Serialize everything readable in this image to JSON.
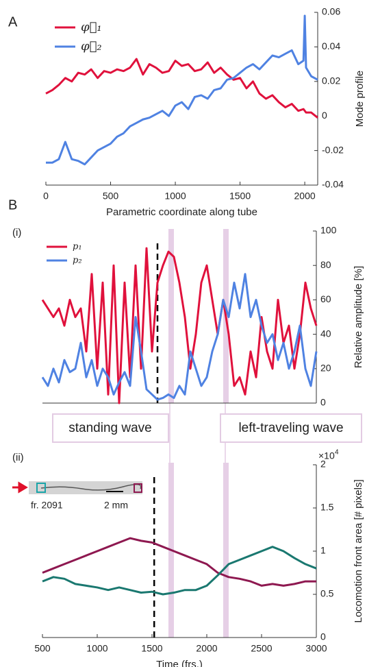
{
  "chart_data": [
    {
      "type": "line",
      "panel_label": "A",
      "xlabel": "Parametric coordinate along tube",
      "ylabel": "Mode profile",
      "xlim": [
        0,
        2100
      ],
      "ylim": [
        -0.04,
        0.06
      ],
      "xticks": [
        0,
        500,
        1000,
        1500,
        2000
      ],
      "yticks": [
        -0.04,
        -0.02,
        0,
        0.02,
        0.04,
        0.06
      ],
      "x": [
        0,
        50,
        100,
        150,
        200,
        250,
        300,
        350,
        400,
        450,
        500,
        550,
        600,
        650,
        700,
        750,
        800,
        850,
        900,
        950,
        1000,
        1050,
        1100,
        1150,
        1200,
        1250,
        1300,
        1350,
        1400,
        1450,
        1500,
        1550,
        1600,
        1650,
        1700,
        1750,
        1800,
        1850,
        1900,
        1950,
        1990,
        2000,
        2010,
        2050,
        2100
      ],
      "series": [
        {
          "name": "φ⃗₁",
          "color": "#e0113c",
          "values": [
            0.013,
            0.015,
            0.018,
            0.022,
            0.02,
            0.025,
            0.024,
            0.027,
            0.022,
            0.026,
            0.025,
            0.027,
            0.026,
            0.028,
            0.033,
            0.024,
            0.03,
            0.028,
            0.025,
            0.026,
            0.032,
            0.029,
            0.03,
            0.026,
            0.027,
            0.031,
            0.025,
            0.028,
            0.024,
            0.021,
            0.022,
            0.016,
            0.02,
            0.013,
            0.01,
            0.012,
            0.008,
            0.005,
            0.007,
            0.003,
            0.004,
            0.003,
            0.002,
            0.002,
            -0.001
          ]
        },
        {
          "name": "φ⃗₂",
          "color": "#4f82e2",
          "values": [
            -0.027,
            -0.027,
            -0.025,
            -0.015,
            -0.025,
            -0.026,
            -0.028,
            -0.024,
            -0.02,
            -0.018,
            -0.016,
            -0.012,
            -0.01,
            -0.006,
            -0.004,
            -0.002,
            -0.001,
            0.001,
            0.003,
            0.0,
            0.006,
            0.008,
            0.004,
            0.011,
            0.012,
            0.01,
            0.015,
            0.016,
            0.021,
            0.022,
            0.025,
            0.028,
            0.03,
            0.027,
            0.031,
            0.035,
            0.034,
            0.036,
            0.038,
            0.03,
            0.032,
            0.058,
            0.028,
            0.023,
            0.021
          ]
        }
      ]
    },
    {
      "type": "line",
      "panel_label": "B",
      "subpanel_label": "(i)",
      "ylabel": "Relative amplitude [%]",
      "xlim": [
        500,
        3000
      ],
      "ylim": [
        0,
        100
      ],
      "yticks": [
        0,
        20,
        40,
        60,
        80,
        100
      ],
      "dashed_x": 1550,
      "bands": [
        [
          1650,
          1700
        ],
        [
          2150,
          2200
        ]
      ],
      "annotations": [
        "standing wave",
        "left-traveling wave"
      ],
      "x": [
        500,
        550,
        600,
        650,
        700,
        750,
        800,
        850,
        900,
        950,
        1000,
        1050,
        1100,
        1150,
        1200,
        1250,
        1300,
        1350,
        1400,
        1450,
        1500,
        1550,
        1600,
        1650,
        1700,
        1750,
        1800,
        1850,
        1900,
        1950,
        2000,
        2050,
        2100,
        2150,
        2200,
        2250,
        2300,
        2350,
        2400,
        2450,
        2500,
        2550,
        2600,
        2650,
        2700,
        2750,
        2800,
        2850,
        2900,
        2950,
        3000
      ],
      "series": [
        {
          "name": "p₁",
          "color": "#e0113c",
          "values": [
            60,
            55,
            50,
            55,
            45,
            60,
            50,
            55,
            30,
            75,
            20,
            70,
            5,
            80,
            0,
            70,
            15,
            80,
            20,
            90,
            30,
            70,
            80,
            88,
            85,
            70,
            50,
            20,
            40,
            70,
            80,
            60,
            40,
            60,
            40,
            10,
            15,
            5,
            30,
            15,
            50,
            30,
            20,
            60,
            35,
            45,
            20,
            40,
            70,
            55,
            45
          ]
        },
        {
          "name": "p₂",
          "color": "#4f82e2",
          "values": [
            15,
            10,
            20,
            12,
            25,
            18,
            20,
            35,
            15,
            25,
            10,
            20,
            15,
            5,
            12,
            18,
            10,
            50,
            30,
            8,
            5,
            2,
            3,
            5,
            3,
            10,
            5,
            30,
            20,
            10,
            15,
            30,
            40,
            60,
            50,
            70,
            55,
            75,
            50,
            60,
            45,
            35,
            40,
            25,
            35,
            20,
            30,
            45,
            20,
            10,
            30
          ]
        }
      ]
    },
    {
      "type": "line",
      "subpanel_label": "(ii)",
      "xlabel": "Time (frs.)",
      "ylabel": "Locomotion front area [# pixels]",
      "y_multiplier_base": "×10",
      "y_multiplier_exp": "4",
      "inset_frame": "fr. 2091",
      "inset_scale": "2 mm",
      "xlim": [
        500,
        3000
      ],
      "ylim": [
        0,
        2
      ],
      "xticks": [
        500,
        1000,
        1500,
        2000,
        2500,
        3000
      ],
      "yticks": [
        0,
        0.5,
        1,
        1.5,
        2
      ],
      "dashed_x": 1520,
      "bands": [
        [
          1650,
          1700
        ],
        [
          2150,
          2200
        ]
      ],
      "x": [
        500,
        600,
        700,
        800,
        900,
        1000,
        1100,
        1200,
        1300,
        1400,
        1500,
        1600,
        1700,
        1800,
        1900,
        2000,
        2100,
        2200,
        2300,
        2400,
        2500,
        2600,
        2700,
        2800,
        2900,
        3000
      ],
      "series": [
        {
          "color": "#8e1850",
          "values": [
            0.75,
            0.8,
            0.85,
            0.9,
            0.95,
            1.0,
            1.05,
            1.1,
            1.15,
            1.12,
            1.1,
            1.05,
            1.0,
            0.95,
            0.9,
            0.85,
            0.75,
            0.7,
            0.68,
            0.65,
            0.6,
            0.62,
            0.6,
            0.62,
            0.65,
            0.65
          ]
        },
        {
          "color": "#1a7870",
          "values": [
            0.65,
            0.7,
            0.68,
            0.62,
            0.6,
            0.58,
            0.55,
            0.58,
            0.55,
            0.52,
            0.53,
            0.5,
            0.52,
            0.55,
            0.55,
            0.6,
            0.72,
            0.85,
            0.9,
            0.95,
            1.0,
            1.05,
            1.0,
            0.92,
            0.85,
            0.8
          ]
        }
      ]
    }
  ]
}
